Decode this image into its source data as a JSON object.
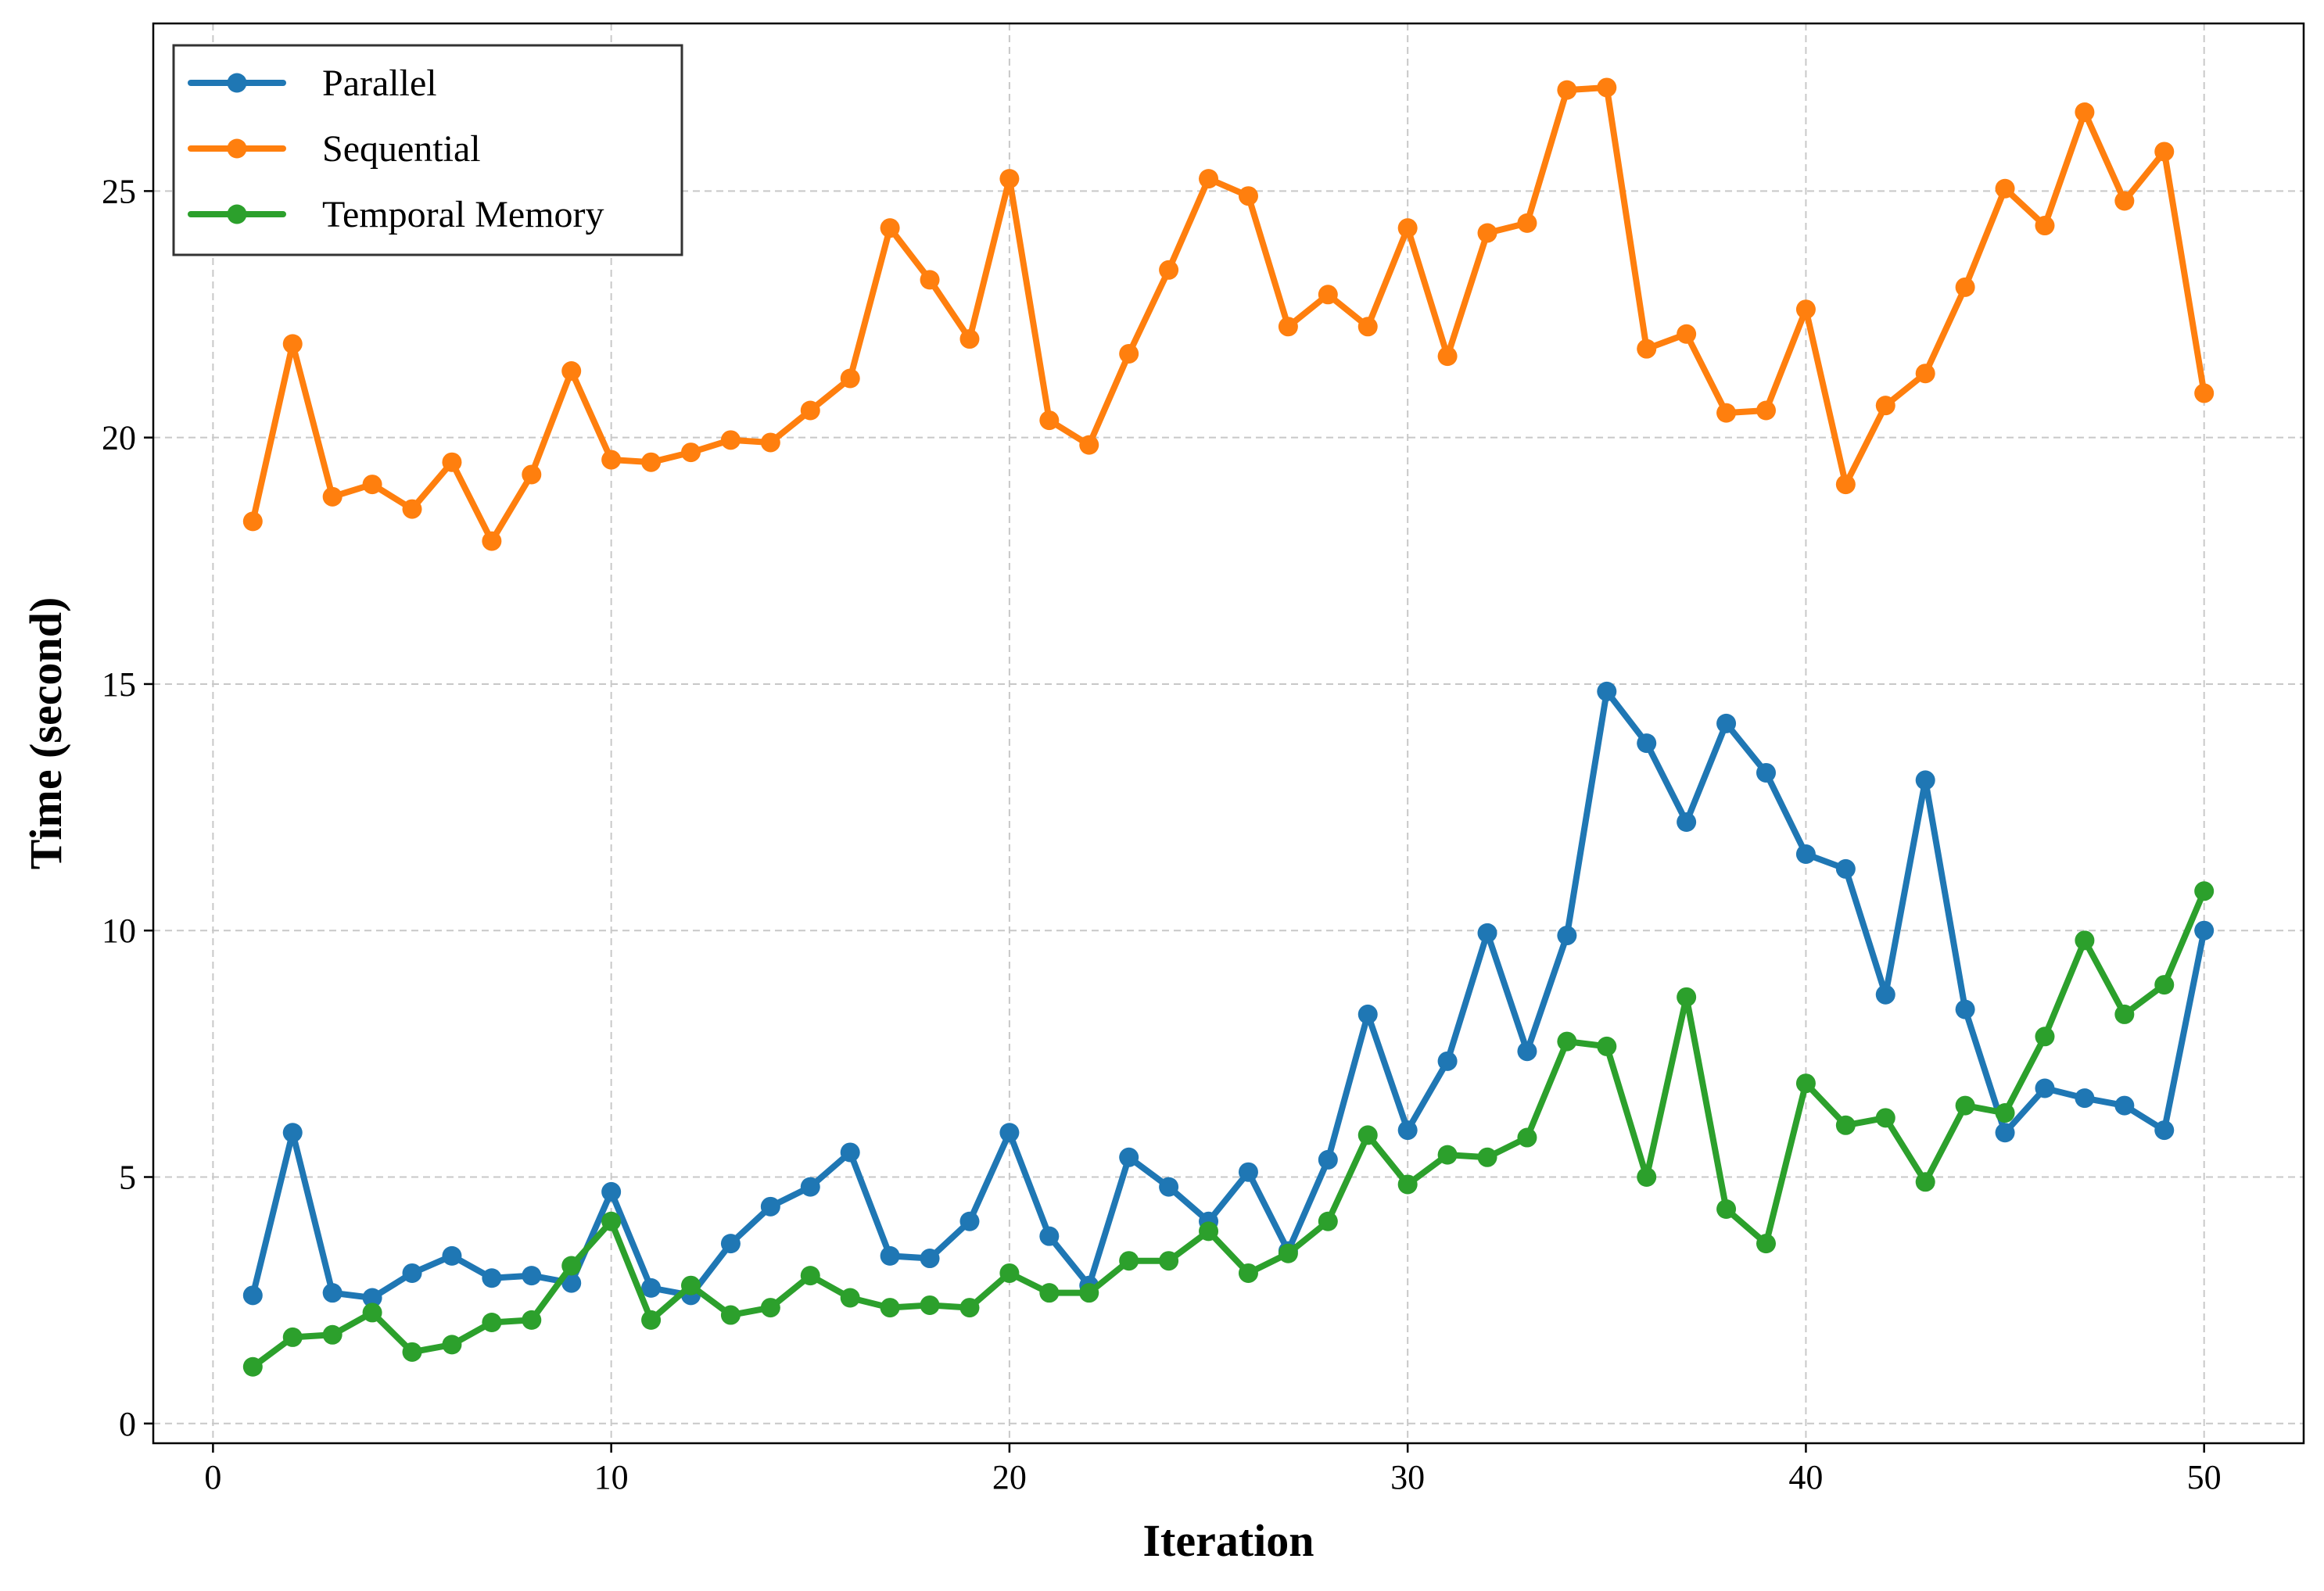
{
  "chart_data": {
    "type": "line",
    "title": "",
    "xlabel": "Iteration",
    "ylabel": "Time (second)",
    "xlim": [
      -1.5,
      52.5
    ],
    "ylim": [
      -0.4,
      28.4
    ],
    "xticks": [
      0,
      10,
      20,
      30,
      40,
      50
    ],
    "yticks": [
      0,
      5,
      10,
      15,
      20,
      25
    ],
    "grid": true,
    "legend_position": "top-left",
    "x": [
      1,
      2,
      3,
      4,
      5,
      6,
      7,
      8,
      9,
      10,
      11,
      12,
      13,
      14,
      15,
      16,
      17,
      18,
      19,
      20,
      21,
      22,
      23,
      24,
      25,
      26,
      27,
      28,
      29,
      30,
      31,
      32,
      33,
      34,
      35,
      36,
      37,
      38,
      39,
      40,
      41,
      42,
      43,
      44,
      45,
      46,
      47,
      48,
      49,
      50
    ],
    "series": [
      {
        "name": "Parallel",
        "color": "#1f77b4",
        "values": [
          2.6,
          5.9,
          2.65,
          2.55,
          3.05,
          3.4,
          2.95,
          3.0,
          2.85,
          4.7,
          2.75,
          2.6,
          3.65,
          4.4,
          4.8,
          5.5,
          3.4,
          3.35,
          4.1,
          5.9,
          3.8,
          2.8,
          5.4,
          4.8,
          4.1,
          5.1,
          3.5,
          5.35,
          8.3,
          5.95,
          7.35,
          9.95,
          7.55,
          9.9,
          14.85,
          13.8,
          12.2,
          14.2,
          13.2,
          11.55,
          11.25,
          8.7,
          13.05,
          8.4,
          5.9,
          6.8,
          6.6,
          6.45,
          5.95,
          10.0
        ]
      },
      {
        "name": "Sequential",
        "color": "#ff7f0e",
        "values": [
          18.3,
          21.9,
          18.8,
          19.05,
          18.55,
          19.5,
          17.9,
          19.25,
          21.35,
          19.55,
          19.5,
          19.7,
          19.95,
          19.9,
          20.55,
          21.2,
          24.25,
          23.2,
          22.0,
          25.25,
          20.35,
          19.85,
          21.7,
          23.4,
          25.25,
          24.9,
          22.25,
          22.9,
          22.25,
          24.25,
          21.65,
          24.15,
          24.35,
          27.05,
          27.1,
          21.8,
          22.1,
          20.5,
          20.55,
          22.6,
          19.05,
          20.65,
          21.3,
          23.05,
          25.05,
          24.3,
          26.6,
          24.8,
          25.8,
          20.9
        ]
      },
      {
        "name": "Temporal Memory",
        "color": "#2ca02c",
        "values": [
          1.15,
          1.75,
          1.8,
          2.25,
          1.45,
          1.6,
          2.05,
          2.1,
          3.2,
          4.1,
          2.1,
          2.8,
          2.2,
          2.35,
          3.0,
          2.55,
          2.35,
          2.4,
          2.35,
          3.05,
          2.65,
          2.65,
          3.3,
          3.3,
          3.9,
          3.05,
          3.45,
          4.1,
          5.85,
          4.85,
          5.45,
          5.4,
          5.8,
          7.75,
          7.65,
          5.0,
          8.65,
          4.35,
          3.65,
          6.9,
          6.05,
          6.2,
          4.9,
          6.45,
          6.3,
          7.85,
          9.8,
          8.3,
          8.9,
          10.8
        ]
      }
    ]
  }
}
